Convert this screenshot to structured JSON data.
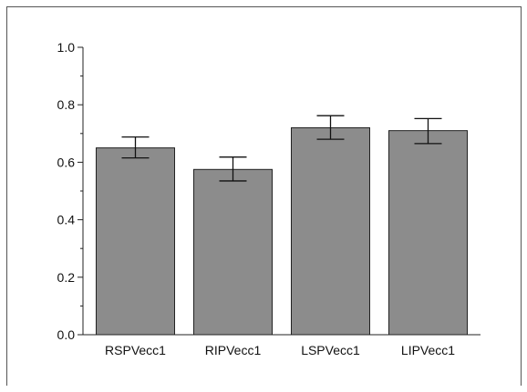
{
  "chart_data": {
    "type": "bar",
    "categories": [
      "RSPVecc1",
      "RIPVecc1",
      "LSPVecc1",
      "LIPVecc1"
    ],
    "values": [
      0.65,
      0.575,
      0.72,
      0.71
    ],
    "error_low": [
      0.615,
      0.535,
      0.68,
      0.665
    ],
    "error_high": [
      0.688,
      0.618,
      0.762,
      0.752
    ],
    "ylim": [
      0,
      1.0
    ],
    "y_ticks": [
      "0.0",
      "0.2",
      "0.4",
      "0.6",
      "0.8",
      "1.0"
    ],
    "y_minor_ticks": [
      0.1,
      0.3,
      0.5,
      0.7,
      0.9
    ],
    "title": "",
    "xlabel": "",
    "ylabel": "",
    "bar_color": "#8c8c8c",
    "bar_edge_color": "#222222",
    "grid": false,
    "legend": "none"
  }
}
